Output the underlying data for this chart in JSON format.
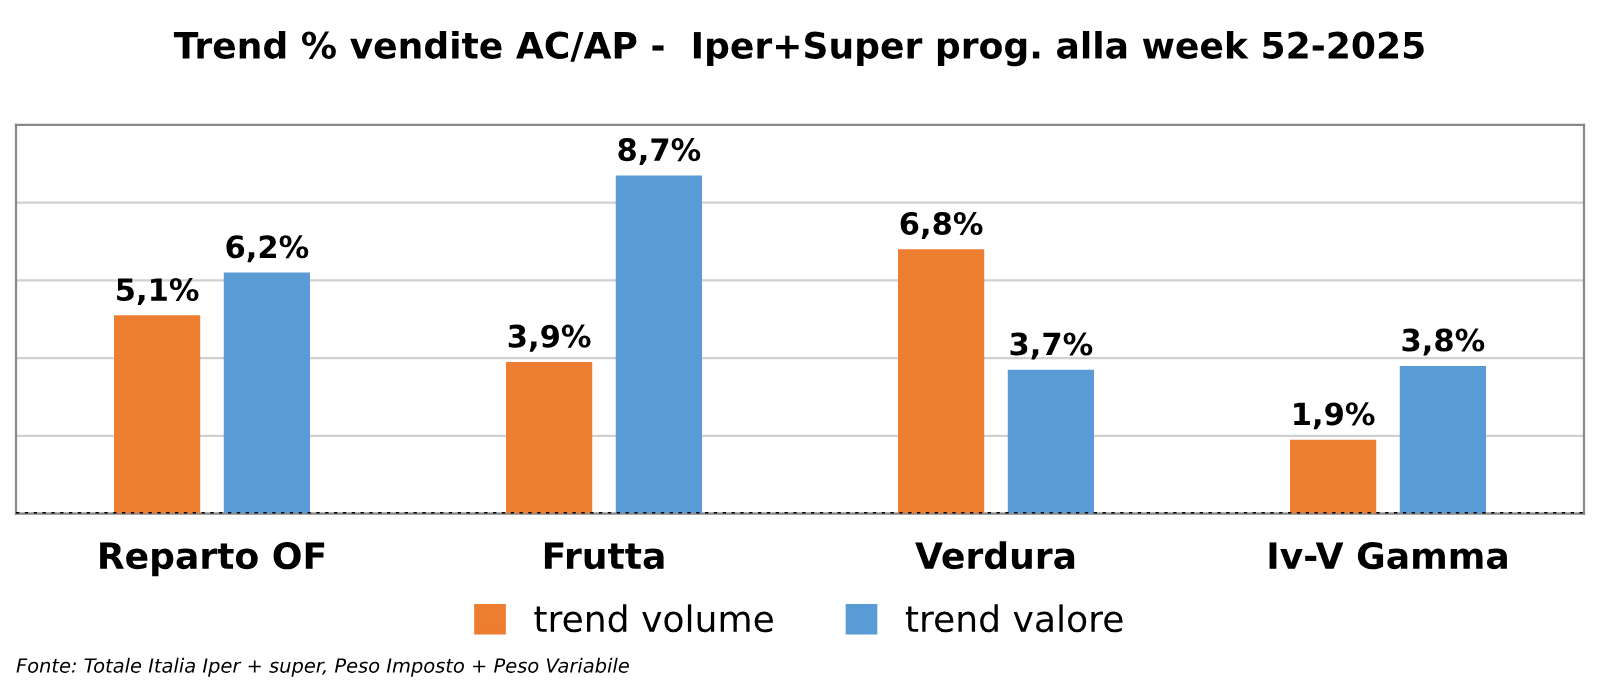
{
  "chart_data": {
    "type": "bar",
    "title": "Trend % vendite AC/AP -  Iper+Super prog. alla week 52-2025",
    "categories": [
      "Reparto OF",
      "Frutta",
      "Verdura",
      "Iv-V Gamma"
    ],
    "series": [
      {
        "name": "trend volume",
        "color": "#ed7d31",
        "values": [
          5.1,
          3.9,
          6.8,
          1.9
        ],
        "value_labels": [
          "5,1%",
          "3,9%",
          "6,8%",
          "1,9%"
        ]
      },
      {
        "name": "trend valore",
        "color": "#5b9bd5",
        "values": [
          6.2,
          8.7,
          3.7,
          3.8
        ],
        "value_labels": [
          "6,2%",
          "8,7%",
          "3,7%",
          "3,8%"
        ]
      }
    ],
    "ylim": [
      0,
      10
    ],
    "yticks": [
      {
        "value": 0,
        "label": null
      },
      {
        "value": 2,
        "label": null
      },
      {
        "value": 4,
        "label": null
      },
      {
        "value": 6,
        "label": null
      },
      {
        "value": 8,
        "label": null
      },
      {
        "value": 10,
        "label": null
      }
    ],
    "grid": "y",
    "legend": "bottom",
    "tick_labels": "x",
    "annotations": [
      "Fonte: Totale Italia Iper + super, Peso Imposto + Peso Variabile"
    ]
  }
}
